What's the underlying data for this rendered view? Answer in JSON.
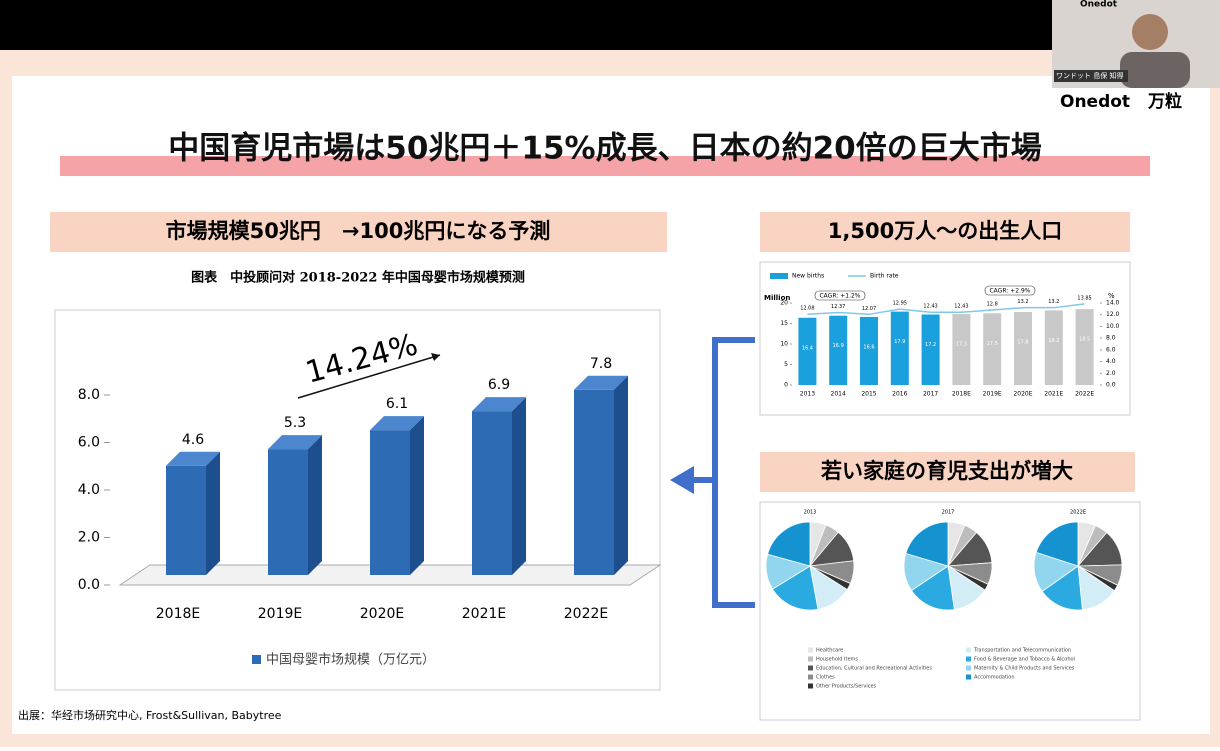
{
  "webcam": {
    "brand": "Onedot",
    "caption": "ワンドット 島保 知得",
    "logo": "Onedot",
    "logo_cn": "万粒"
  },
  "title": "中国育児市場は50兆円＋15%成長、日本の約20倍の巨大市場",
  "left_heading": "市場規模50兆円　→100兆円になる予測",
  "chart_caption": "图表　中投顾问对 2018-2022 年中国母婴市场规模预测",
  "birth_heading": "1,500万人～の出生人口",
  "spending_heading": "若い家庭の育児支出が増大",
  "source": "出展：华经市场研究中心, Frost&Sullivan, Babytree",
  "chart_data": [
    {
      "type": "bar3d",
      "categories": [
        "2018E",
        "2019E",
        "2020E",
        "2021E",
        "2022E"
      ],
      "series": [
        {
          "name": "中国母婴市场规模（万亿元）",
          "color": "#2e6bb5",
          "values": [
            4.6,
            5.3,
            6.1,
            6.9,
            7.8
          ]
        }
      ],
      "ylim": [
        0,
        8
      ],
      "yticks": [
        {
          "value": 0,
          "label": "0.0"
        },
        {
          "value": 2,
          "label": "2.0"
        },
        {
          "value": 4,
          "label": "4.0"
        },
        {
          "value": 6,
          "label": "6.0"
        },
        {
          "value": 8,
          "label": "8.0"
        }
      ],
      "annotation": "14.24%"
    },
    {
      "type": "bar_line",
      "categories": [
        "2013",
        "2014",
        "2015",
        "2016",
        "2017",
        "2018E",
        "2019E",
        "2020E",
        "2021E",
        "2022E"
      ],
      "series": [
        {
          "name": "New births",
          "color": "#1aa0dc",
          "forecast_color": "#c8c8c8",
          "values": [
            16.4,
            16.9,
            16.6,
            17.9,
            17.2,
            17.3,
            17.5,
            17.8,
            18.2,
            18.5
          ]
        },
        {
          "name": "Birth rate",
          "color": "#7fc8ea",
          "axis": "y2",
          "values": [
            12.08,
            12.37,
            12.07,
            12.95,
            12.43,
            12.43,
            12.8,
            13.2,
            13.2,
            13.85
          ]
        }
      ],
      "ylabel": "Million",
      "ylim": [
        0,
        20
      ],
      "yticks": [
        0,
        5,
        10,
        15,
        20
      ],
      "y2label": "%",
      "y2lim": [
        0,
        14
      ],
      "y2ticks": [
        {
          "value": 0,
          "label": "0.0"
        },
        {
          "value": 2,
          "label": "2.0"
        },
        {
          "value": 4,
          "label": "4.0"
        },
        {
          "value": 6,
          "label": "6.0"
        },
        {
          "value": 8,
          "label": "8.0"
        },
        {
          "value": 10,
          "label": "10.0"
        },
        {
          "value": 12,
          "label": "12.0"
        },
        {
          "value": 14,
          "label": "14.0"
        }
      ],
      "annotations": [
        "CAGR: +1.2%",
        "CAGR: +2.9%"
      ]
    },
    {
      "type": "pie",
      "legend": [
        "Healthcare",
        "Household Items",
        "Education, Cultural and Recreational Activities",
        "Clothes",
        "Other Products/Services",
        "Transportation and Telecommunication",
        "Food & Beverage and Tobacco & Alcohol",
        "Maternity & Child Products and Services",
        "Accommodation"
      ],
      "colors": [
        "#e6e6e6",
        "#bdbdbd",
        "#555555",
        "#8c8c8c",
        "#333333",
        "#d3edf7",
        "#2aaae1",
        "#92d5ef",
        "#1593d0"
      ],
      "pies": [
        {
          "label": "2013",
          "values": [
            5.9,
            5.2,
            12.0,
            8.4,
            2.5,
            13.1,
            19.1,
            13.1,
            20.7
          ]
        },
        {
          "label": "2017",
          "values": [
            6.2,
            5.0,
            12.6,
            8.0,
            2.4,
            13.5,
            17.9,
            14.0,
            20.4
          ]
        },
        {
          "label": "2022E",
          "values": [
            6.5,
            4.8,
            13.3,
            7.6,
            2.3,
            13.9,
            16.8,
            14.8,
            20.0
          ]
        }
      ]
    }
  ]
}
